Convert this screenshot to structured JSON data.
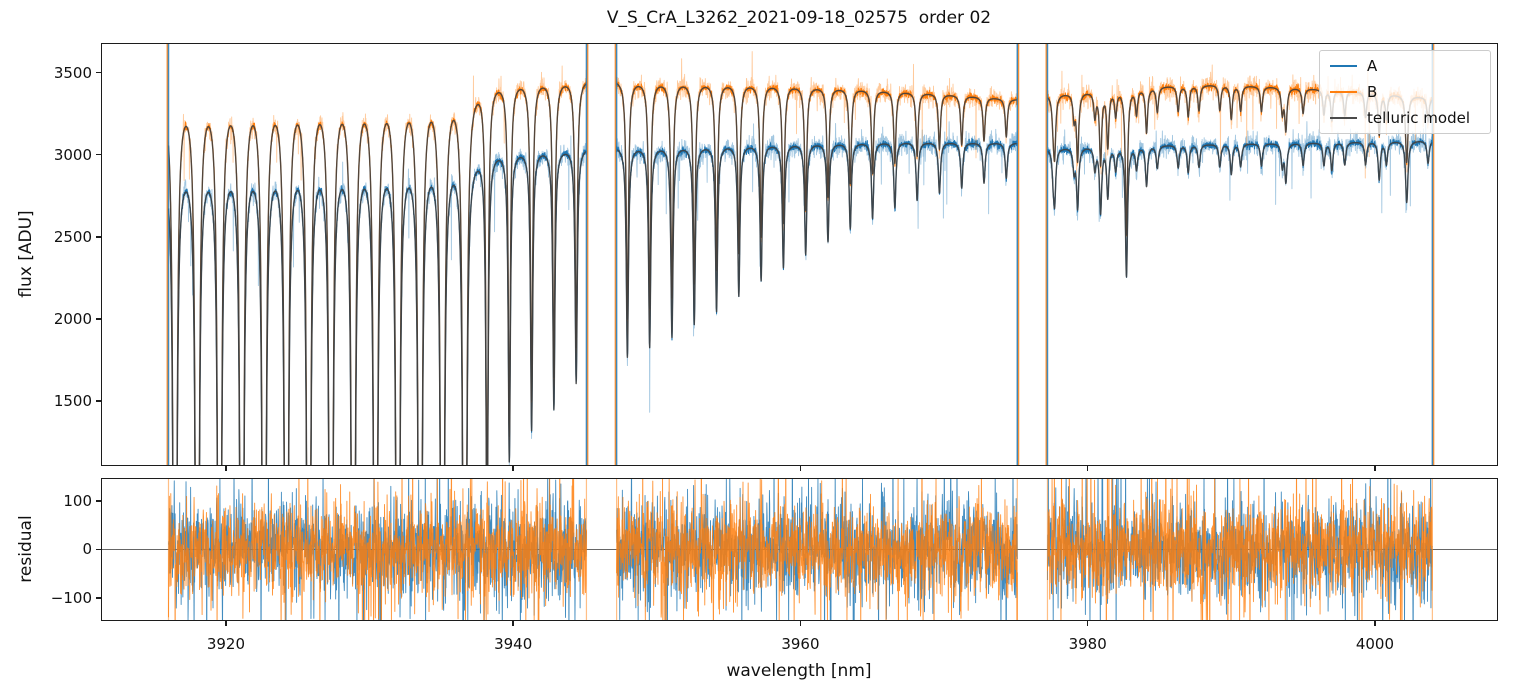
{
  "chart_data": {
    "type": "line",
    "title": "V_S_CrA_L3262_2021-09-18_02575  order 02",
    "xlabel": "wavelength [nm]",
    "xlim": [
      3911.3,
      4008.5
    ],
    "xticks": [
      3920,
      3940,
      3960,
      3980,
      4000
    ],
    "legend": {
      "position": "upper right",
      "items": [
        {
          "label": "A",
          "color": "#1f77b4"
        },
        {
          "label": "B",
          "color": "#ff7f0e"
        },
        {
          "label": "telluric model",
          "color": "#4a4a4a"
        }
      ]
    },
    "panels": [
      {
        "name": "flux",
        "ylabel": "flux [ADU]",
        "ylim": [
          1110,
          3680
        ],
        "yticks": [
          1500,
          2000,
          2500,
          3000,
          3500
        ],
        "grid": false
      },
      {
        "name": "residual",
        "ylabel": "residual",
        "ylim": [
          -145,
          147
        ],
        "yticks": [
          -100,
          0,
          100
        ],
        "zero_line": true,
        "grid": false
      }
    ],
    "series": {
      "A": {
        "label": "A",
        "color": "#1f77b4",
        "noise_raw": 32,
        "noise_smooth": 11,
        "continuum_knots": [
          [
            3916,
            2985
          ],
          [
            3920,
            3010
          ],
          [
            3926,
            3025
          ],
          [
            3932,
            3035
          ],
          [
            3938,
            3045
          ],
          [
            3945,
            3052
          ],
          [
            3947,
            3052
          ],
          [
            3953,
            3062
          ],
          [
            3960,
            3072
          ],
          [
            3967,
            3080
          ],
          [
            3975,
            3072
          ],
          [
            3977,
            3040
          ],
          [
            3980,
            3052
          ],
          [
            3985,
            3060
          ],
          [
            3990,
            3068
          ],
          [
            3996,
            3075
          ],
          [
            4000,
            3082
          ],
          [
            4004,
            3088
          ]
        ]
      },
      "B": {
        "label": "B",
        "color": "#ff7f0e",
        "noise_raw": 32,
        "noise_smooth": 11,
        "continuum_knots": [
          [
            3916,
            3415
          ],
          [
            3920,
            3445
          ],
          [
            3926,
            3458
          ],
          [
            3932,
            3465
          ],
          [
            3938,
            3472
          ],
          [
            3945,
            3468
          ],
          [
            3947,
            3458
          ],
          [
            3952,
            3450
          ],
          [
            3958,
            3432
          ],
          [
            3964,
            3405
          ],
          [
            3970,
            3372
          ],
          [
            3975,
            3338
          ],
          [
            3977,
            3365
          ],
          [
            3981,
            3395
          ],
          [
            3985,
            3418
          ],
          [
            3989,
            3428
          ],
          [
            3993,
            3415
          ],
          [
            3997,
            3398
          ],
          [
            4001,
            3372
          ],
          [
            4004,
            3348
          ]
        ]
      }
    },
    "telluric_model": {
      "label": "telluric model",
      "color": "#3f3f3f",
      "gamma_nm": 0.09
    },
    "segments": [
      {
        "range": [
          3916.0,
          3945.1
        ],
        "comb": {
          "start": 3916.45,
          "spacing": 1.552,
          "depths": [
            2.5,
            2.5,
            2.5,
            2.5,
            2.5,
            2.5,
            2.5,
            2.5,
            2.5,
            2.5,
            2.5,
            2.5,
            2.5,
            2.5,
            0.8,
            0.62,
            0.56,
            0.52,
            0.47
          ]
        },
        "extra_lines": []
      },
      {
        "range": [
          3947.2,
          3975.1
        ],
        "comb": {
          "start": 3947.95,
          "spacing": 1.552,
          "depths": [
            0.42,
            0.4,
            0.38,
            0.355,
            0.33,
            0.3,
            0.27,
            0.245,
            0.22,
            0.195,
            0.17,
            0.15,
            0.13,
            0.115,
            0.1,
            0.09,
            0.08,
            0.07
          ]
        },
        "extra_lines": []
      },
      {
        "range": [
          3977.2,
          4004.0
        ],
        "comb": {
          "start": 3977.6,
          "spacing": 1.45,
          "depths": [
            0.045,
            0.045,
            0.045,
            0.045,
            0.045,
            0.045,
            0.045,
            0.045,
            0.045,
            0.045,
            0.045,
            0.045,
            0.045,
            0.045,
            0.045,
            0.045,
            0.045,
            0.045,
            0.045
          ]
        },
        "extra_lines": [
          [
            3977.7,
            0.1
          ],
          [
            3979.3,
            0.12
          ],
          [
            3980.9,
            0.13
          ],
          [
            3981.4,
            0.1
          ],
          [
            3982.7,
            0.26
          ],
          [
            3984.1,
            0.08
          ],
          [
            3987.0,
            0.055
          ],
          [
            3990.0,
            0.06
          ],
          [
            3993.8,
            0.075
          ],
          [
            3997.0,
            0.055
          ],
          [
            4000.3,
            0.075
          ],
          [
            4002.2,
            0.085
          ]
        ]
      }
    ],
    "residual_noise_sigma": 50
  }
}
